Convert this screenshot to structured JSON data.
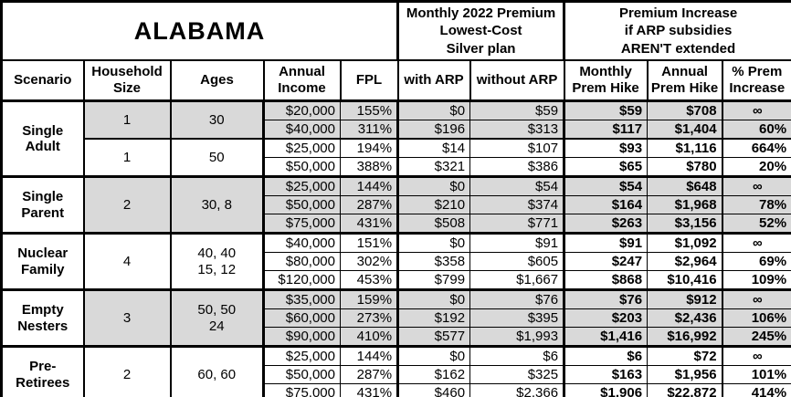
{
  "colors": {
    "shaded_row": "#d9d9d9",
    "border": "#000000",
    "background": "#ffffff"
  },
  "chart_data": {
    "type": "table",
    "title": "ALABAMA",
    "section_headers": {
      "premium": "Monthly 2022 Premium\nLowest-Cost\nSilver plan",
      "increase": "Premium Increase\nif ARP subsidies\nAREN'T extended"
    },
    "columns": [
      {
        "id": "scenario",
        "label": "Scenario"
      },
      {
        "id": "household-size",
        "label": "Household\nSize"
      },
      {
        "id": "ages",
        "label": "Ages"
      },
      {
        "id": "annual-income",
        "label": "Annual\nIncome"
      },
      {
        "id": "fpl",
        "label": "FPL"
      },
      {
        "id": "with-arp",
        "label": "with ARP"
      },
      {
        "id": "without-arp",
        "label": "without ARP"
      },
      {
        "id": "monthly-prem-hike",
        "label": "Monthly\nPrem Hike"
      },
      {
        "id": "annual-prem-hike",
        "label": "Annual\nPrem Hike"
      },
      {
        "id": "pct-prem-increase",
        "label": "% Prem\nIncrease"
      }
    ],
    "groups": [
      {
        "scenario": "Single\nAdult",
        "subgroups": [
          {
            "household_size": "1",
            "ages": "30",
            "shaded": true,
            "rows": [
              {
                "income": "$20,000",
                "fpl": "155%",
                "with_arp": "$0",
                "without_arp": "$59",
                "monthly_hike": "$59",
                "annual_hike": "$708",
                "pct_increase": "∞"
              },
              {
                "income": "$40,000",
                "fpl": "311%",
                "with_arp": "$196",
                "without_arp": "$313",
                "monthly_hike": "$117",
                "annual_hike": "$1,404",
                "pct_increase": "60%"
              }
            ]
          },
          {
            "household_size": "1",
            "ages": "50",
            "shaded": false,
            "rows": [
              {
                "income": "$25,000",
                "fpl": "194%",
                "with_arp": "$14",
                "without_arp": "$107",
                "monthly_hike": "$93",
                "annual_hike": "$1,116",
                "pct_increase": "664%"
              },
              {
                "income": "$50,000",
                "fpl": "388%",
                "with_arp": "$321",
                "without_arp": "$386",
                "monthly_hike": "$65",
                "annual_hike": "$780",
                "pct_increase": "20%"
              }
            ]
          }
        ]
      },
      {
        "scenario": "Single\nParent",
        "subgroups": [
          {
            "household_size": "2",
            "ages": "30, 8",
            "shaded": true,
            "rows": [
              {
                "income": "$25,000",
                "fpl": "144%",
                "with_arp": "$0",
                "without_arp": "$54",
                "monthly_hike": "$54",
                "annual_hike": "$648",
                "pct_increase": "∞"
              },
              {
                "income": "$50,000",
                "fpl": "287%",
                "with_arp": "$210",
                "without_arp": "$374",
                "monthly_hike": "$164",
                "annual_hike": "$1,968",
                "pct_increase": "78%"
              },
              {
                "income": "$75,000",
                "fpl": "431%",
                "with_arp": "$508",
                "without_arp": "$771",
                "monthly_hike": "$263",
                "annual_hike": "$3,156",
                "pct_increase": "52%"
              }
            ]
          }
        ]
      },
      {
        "scenario": "Nuclear\nFamily",
        "subgroups": [
          {
            "household_size": "4",
            "ages": "40, 40\n15, 12",
            "shaded": false,
            "rows": [
              {
                "income": "$40,000",
                "fpl": "151%",
                "with_arp": "$0",
                "without_arp": "$91",
                "monthly_hike": "$91",
                "annual_hike": "$1,092",
                "pct_increase": "∞"
              },
              {
                "income": "$80,000",
                "fpl": "302%",
                "with_arp": "$358",
                "without_arp": "$605",
                "monthly_hike": "$247",
                "annual_hike": "$2,964",
                "pct_increase": "69%"
              },
              {
                "income": "$120,000",
                "fpl": "453%",
                "with_arp": "$799",
                "without_arp": "$1,667",
                "monthly_hike": "$868",
                "annual_hike": "$10,416",
                "pct_increase": "109%"
              }
            ]
          }
        ]
      },
      {
        "scenario": "Empty\nNesters",
        "subgroups": [
          {
            "household_size": "3",
            "ages": "50, 50\n24",
            "shaded": true,
            "rows": [
              {
                "income": "$35,000",
                "fpl": "159%",
                "with_arp": "$0",
                "without_arp": "$76",
                "monthly_hike": "$76",
                "annual_hike": "$912",
                "pct_increase": "∞"
              },
              {
                "income": "$60,000",
                "fpl": "273%",
                "with_arp": "$192",
                "without_arp": "$395",
                "monthly_hike": "$203",
                "annual_hike": "$2,436",
                "pct_increase": "106%"
              },
              {
                "income": "$90,000",
                "fpl": "410%",
                "with_arp": "$577",
                "without_arp": "$1,993",
                "monthly_hike": "$1,416",
                "annual_hike": "$16,992",
                "pct_increase": "245%"
              }
            ]
          }
        ]
      },
      {
        "scenario": "Pre-\nRetirees",
        "subgroups": [
          {
            "household_size": "2",
            "ages": "60, 60",
            "shaded": false,
            "rows": [
              {
                "income": "$25,000",
                "fpl": "144%",
                "with_arp": "$0",
                "without_arp": "$6",
                "monthly_hike": "$6",
                "annual_hike": "$72",
                "pct_increase": "∞"
              },
              {
                "income": "$50,000",
                "fpl": "287%",
                "with_arp": "$162",
                "without_arp": "$325",
                "monthly_hike": "$163",
                "annual_hike": "$1,956",
                "pct_increase": "101%"
              },
              {
                "income": "$75,000",
                "fpl": "431%",
                "with_arp": "$460",
                "without_arp": "$2,366",
                "monthly_hike": "$1,906",
                "annual_hike": "$22,872",
                "pct_increase": "414%"
              }
            ]
          }
        ]
      }
    ]
  }
}
